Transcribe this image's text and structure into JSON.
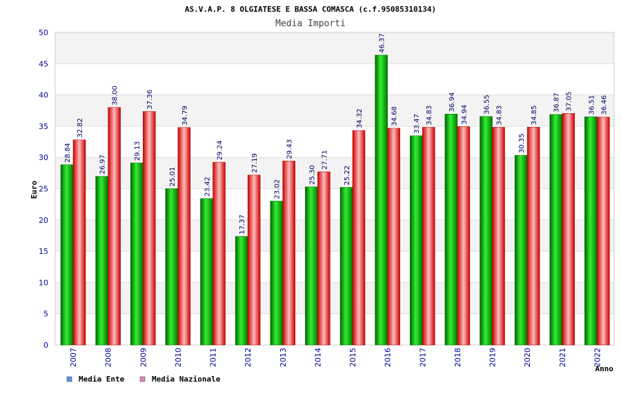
{
  "chart_data": {
    "type": "bar",
    "title": "AS.V.A.P. 8 OLGIATESE E BASSA COMASCA (c.f.95085310134)",
    "subtitle": "Media Importi",
    "xlabel": "Anno",
    "ylabel": "Euro",
    "ylim": [
      0,
      50
    ],
    "yticks": [
      0,
      5,
      10,
      15,
      20,
      25,
      30,
      35,
      40,
      45,
      50
    ],
    "grid": true,
    "legend_position": "bottom-left",
    "categories": [
      "2007",
      "2008",
      "2009",
      "2010",
      "2011",
      "2012",
      "2013",
      "2014",
      "2015",
      "2016",
      "2017",
      "2018",
      "2019",
      "2020",
      "2021",
      "2022"
    ],
    "series": [
      {
        "name": "Media Ente",
        "color": "#00aa00",
        "legend_color": "#5599ee",
        "values": [
          28.84,
          26.97,
          29.13,
          25.01,
          23.42,
          17.37,
          23.02,
          25.3,
          25.22,
          46.37,
          33.47,
          36.94,
          36.55,
          30.35,
          36.87,
          36.51
        ],
        "labels": [
          "28.84",
          "26.97",
          "29.13",
          "25.01",
          "23.42",
          "17.37",
          "23.02",
          "25.30",
          "25.22",
          "46.37",
          "33.47",
          "36.94",
          "36.55",
          "30.35",
          "36.87",
          "36.51"
        ]
      },
      {
        "name": "Media Nazionale",
        "color": "#dd1111",
        "legend_color": "#dd88bb",
        "values": [
          32.82,
          38.0,
          37.36,
          34.79,
          29.24,
          27.19,
          29.43,
          27.71,
          34.32,
          34.68,
          34.83,
          34.94,
          34.83,
          34.85,
          37.05,
          36.46
        ],
        "labels": [
          "32.82",
          "38.00",
          "37.36",
          "34.79",
          "29.24",
          "27.19",
          "29.43",
          "27.71",
          "34.32",
          "34.68",
          "34.83",
          "34.94",
          "34.83",
          "34.85",
          "37.05",
          "36.46"
        ]
      }
    ]
  }
}
